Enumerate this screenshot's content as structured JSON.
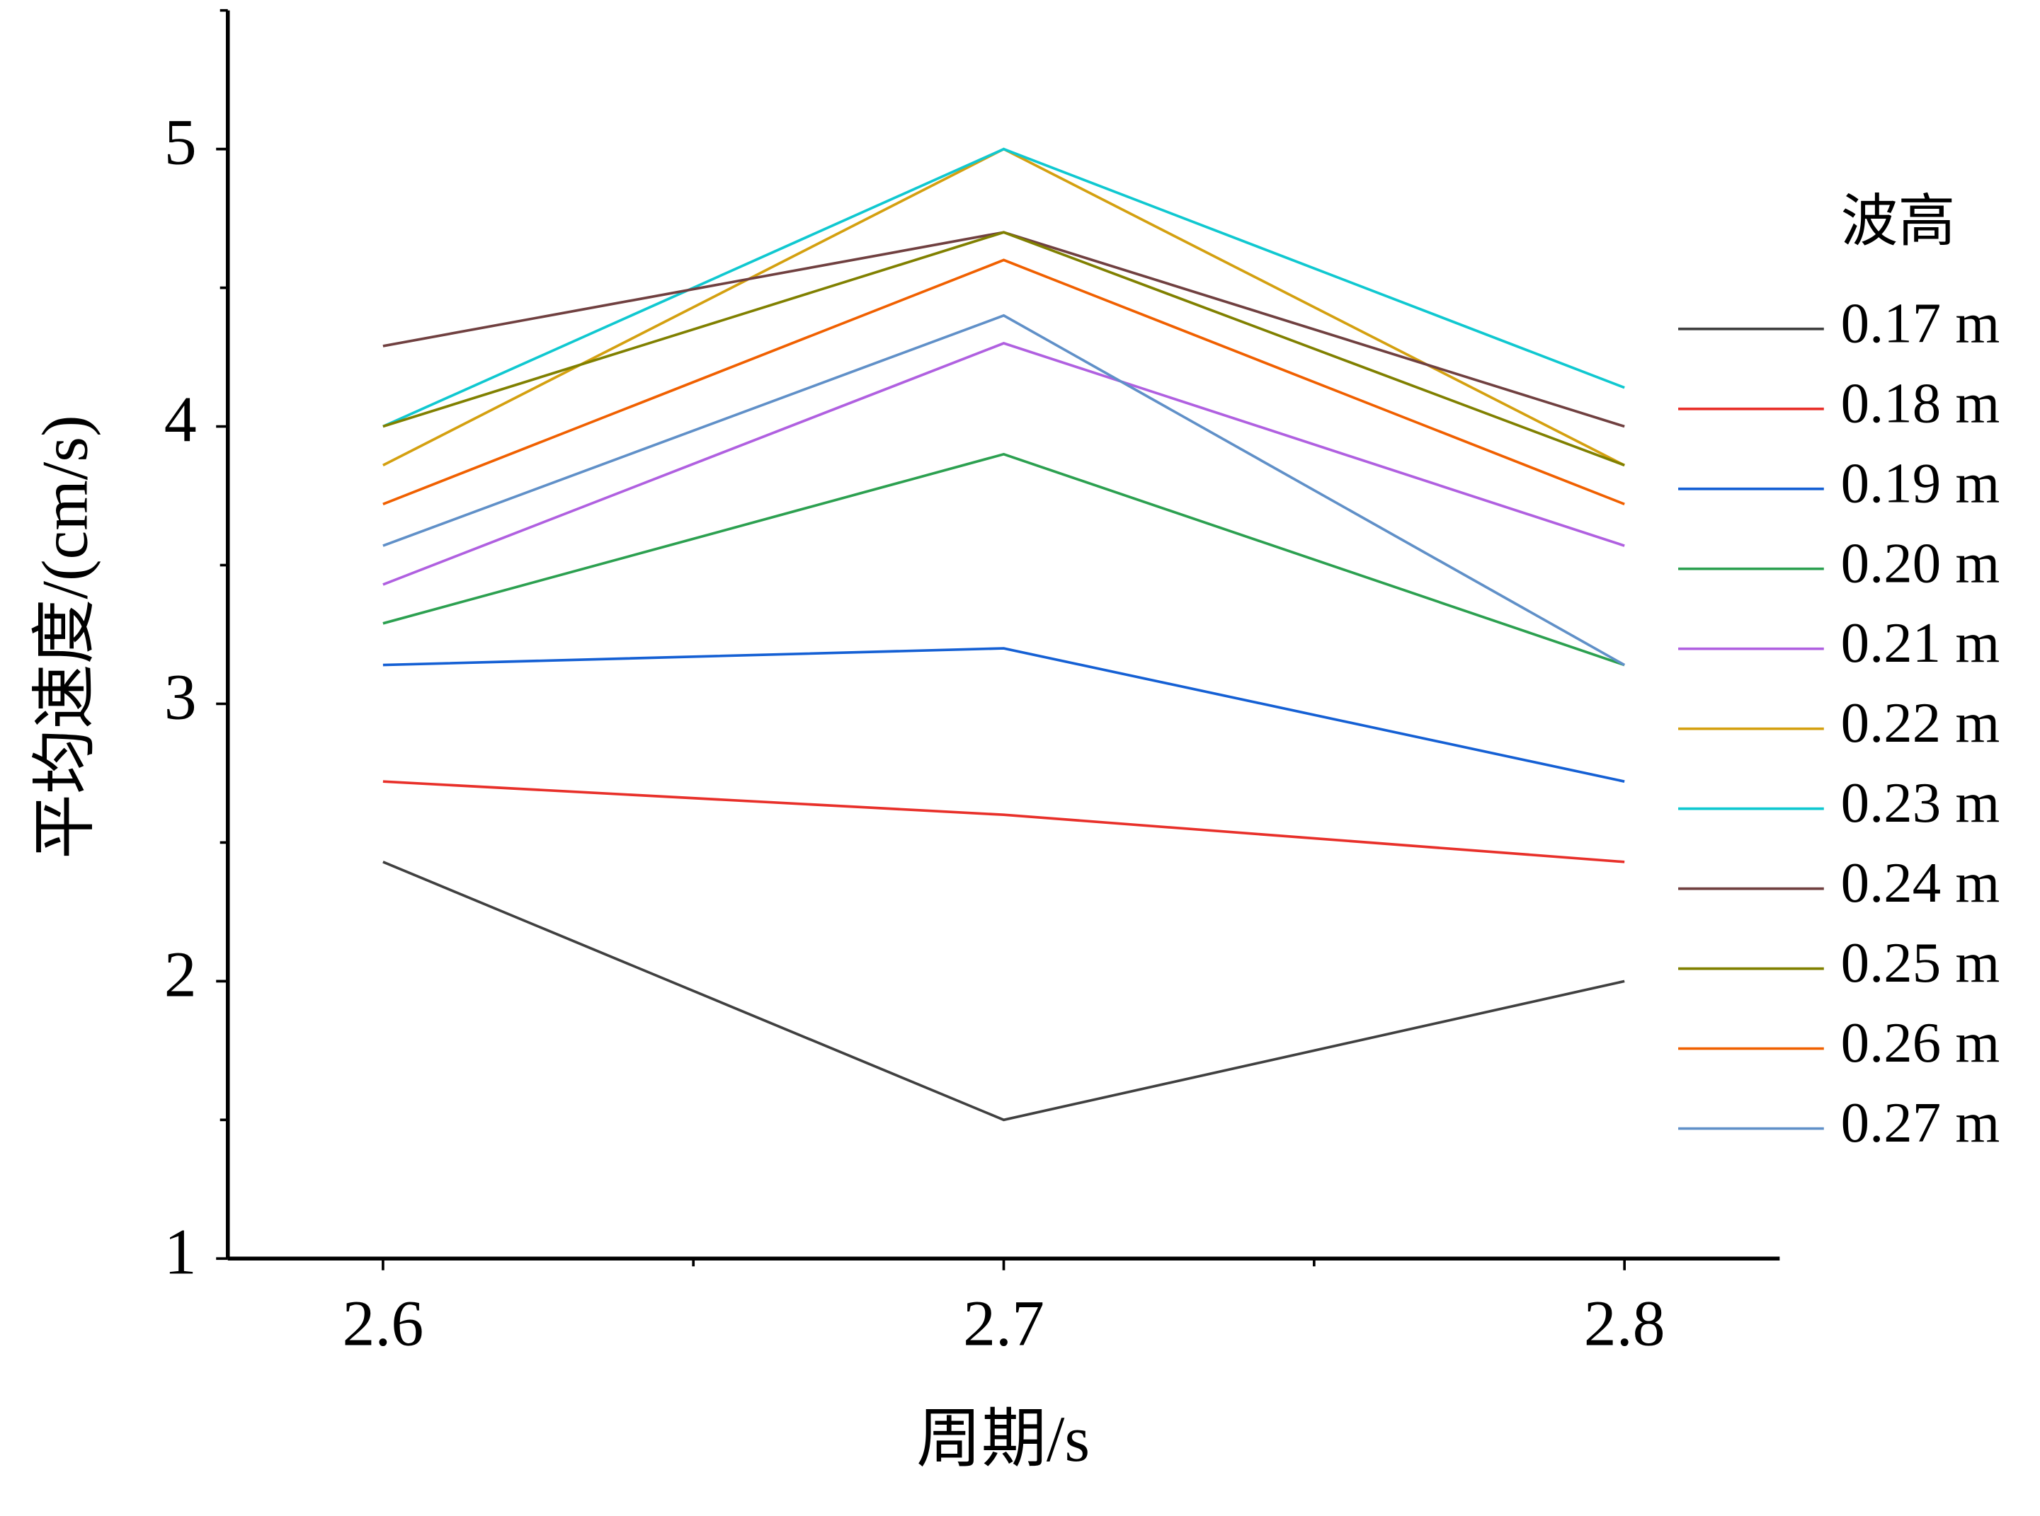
{
  "chart_data": {
    "type": "line",
    "x_label": "周期/s",
    "y_label": "平均速度/(cm/s)",
    "legend_title": "波高",
    "x": [
      2.6,
      2.7,
      2.8
    ],
    "xlim": [
      2.575,
      2.825
    ],
    "xticks": [
      2.6,
      2.7,
      2.8
    ],
    "x_minor_ticks": [
      2.65,
      2.75
    ],
    "ylim": [
      1,
      5.5
    ],
    "yticks": [
      1,
      2,
      3,
      4,
      5
    ],
    "y_minor_ticks": [
      1.5,
      2.5,
      3.5,
      4.5,
      5.5
    ],
    "legend_position": "right",
    "series": [
      {
        "name": "0.17 m",
        "color": "#404040",
        "values": [
          2.43,
          1.5,
          2.0
        ]
      },
      {
        "name": "0.18 m",
        "color": "#e8302a",
        "values": [
          2.72,
          2.6,
          2.43
        ]
      },
      {
        "name": "0.19 m",
        "color": "#1560d4",
        "values": [
          3.14,
          3.2,
          2.72
        ]
      },
      {
        "name": "0.20 m",
        "color": "#2ca050",
        "values": [
          3.29,
          3.9,
          3.14
        ]
      },
      {
        "name": "0.21 m",
        "color": "#b060e0",
        "values": [
          3.43,
          4.3,
          3.57
        ]
      },
      {
        "name": "0.22 m",
        "color": "#d4a010",
        "values": [
          3.86,
          5.0,
          3.86
        ]
      },
      {
        "name": "0.23 m",
        "color": "#10c8d0",
        "values": [
          4.0,
          5.0,
          4.14
        ]
      },
      {
        "name": "0.24 m",
        "color": "#704040",
        "values": [
          4.29,
          4.7,
          4.0
        ]
      },
      {
        "name": "0.25 m",
        "color": "#808000",
        "values": [
          4.0,
          4.7,
          3.86
        ]
      },
      {
        "name": "0.26 m",
        "color": "#f06000",
        "values": [
          3.72,
          4.6,
          3.72
        ]
      },
      {
        "name": "0.27 m",
        "color": "#6090c8",
        "values": [
          3.57,
          4.4,
          3.14
        ]
      }
    ]
  }
}
